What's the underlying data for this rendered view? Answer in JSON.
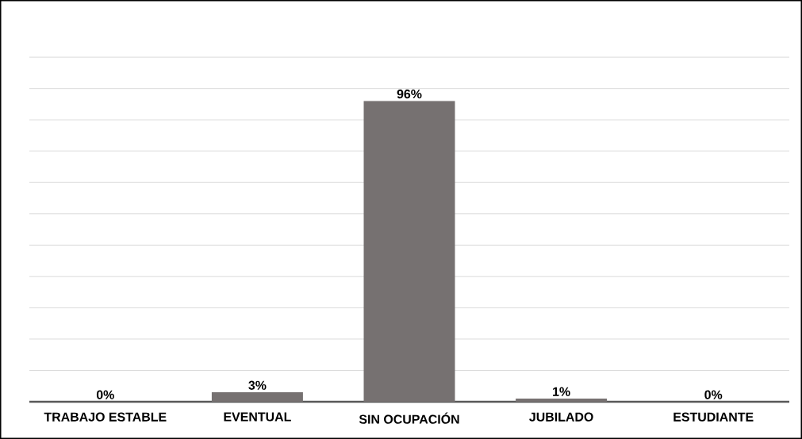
{
  "chart_data": {
    "type": "bar",
    "categories": [
      "TRABAJO ESTABLE",
      "EVENTUAL",
      "SIN OCUPACIÓN",
      "JUBILADO",
      "ESTUDIANTE"
    ],
    "values": [
      0,
      3,
      96,
      1,
      0
    ],
    "value_labels": [
      "0%",
      "3%",
      "96%",
      "1%",
      "0%"
    ],
    "color": "#767171",
    "grid": "y",
    "tick_labels": "x"
  }
}
